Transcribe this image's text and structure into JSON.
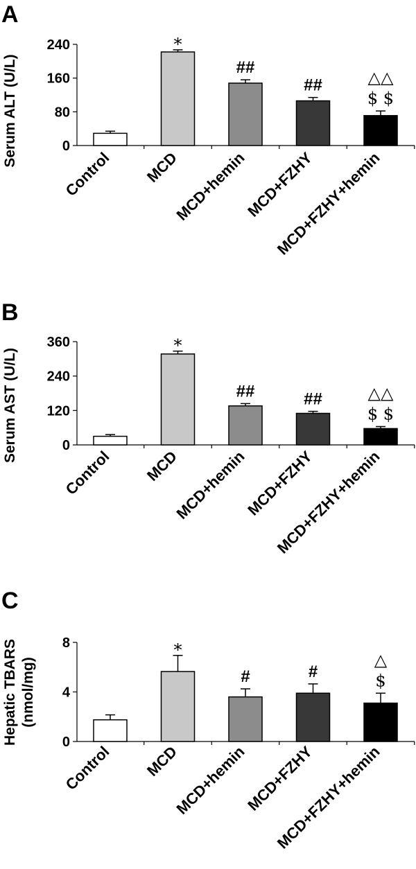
{
  "chart_data": [
    {
      "type": "bar",
      "panel": "A",
      "ylabel": "Serum ALT (U/L)",
      "categories": [
        "Control",
        "MCD",
        "MCD+hemin",
        "MCD+FZHY",
        "MCD+FZHY+hemin"
      ],
      "values": [
        29,
        222,
        148,
        106,
        71
      ],
      "errors": [
        5,
        5,
        8,
        8,
        11
      ],
      "annotations": [
        [],
        [
          "*"
        ],
        [
          "##"
        ],
        [
          "##"
        ],
        [
          "△△",
          "$ $"
        ]
      ],
      "ylim": [
        0,
        240
      ],
      "yticks": [
        "0",
        "80",
        "160",
        "240"
      ],
      "colors": [
        "#ffffff",
        "#c8c8c8",
        "#8c8c8c",
        "#383838",
        "#000000"
      ],
      "grid": false
    },
    {
      "type": "bar",
      "panel": "B",
      "ylabel": "Serum AST (U/L)",
      "categories": [
        "Control",
        "MCD",
        "MCD+hemin",
        "MCD+FZHY",
        "MCD+FZHY+hemin"
      ],
      "values": [
        30,
        317,
        136,
        110,
        57
      ],
      "errors": [
        6,
        10,
        8,
        7,
        7
      ],
      "annotations": [
        [],
        [
          "*"
        ],
        [
          "##"
        ],
        [
          "##"
        ],
        [
          "△△",
          "$ $"
        ]
      ],
      "ylim": [
        0,
        360
      ],
      "yticks": [
        "0",
        "120",
        "240",
        "360"
      ],
      "colors": [
        "#ffffff",
        "#c8c8c8",
        "#8c8c8c",
        "#383838",
        "#000000"
      ],
      "grid": false
    },
    {
      "type": "bar",
      "panel": "C",
      "ylabel": "Hepatic TBARS",
      "ylabel2": "(nmol/mg)",
      "categories": [
        "Control",
        "MCD",
        "MCD+hemin",
        "MCD+FZHY",
        "MCD+FZHY+hemin"
      ],
      "values": [
        1.75,
        5.65,
        3.6,
        3.9,
        3.1
      ],
      "errors": [
        0.4,
        1.3,
        0.65,
        0.75,
        0.8
      ],
      "annotations": [
        [],
        [
          "*"
        ],
        [
          "#"
        ],
        [
          "#"
        ],
        [
          "△",
          "$"
        ]
      ],
      "ylim": [
        0,
        8
      ],
      "yticks": [
        "0",
        "4",
        "8"
      ],
      "colors": [
        "#ffffff",
        "#c8c8c8",
        "#8c8c8c",
        "#383838",
        "#000000"
      ],
      "grid": false
    }
  ]
}
